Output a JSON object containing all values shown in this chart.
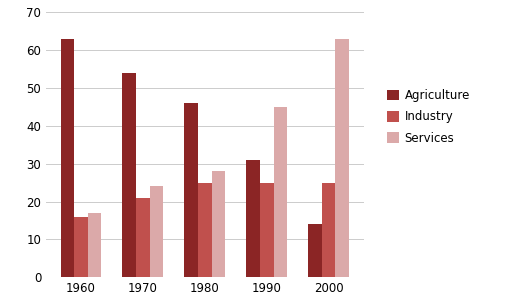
{
  "years": [
    "1960",
    "1970",
    "1980",
    "1990",
    "2000"
  ],
  "agriculture": [
    63,
    54,
    46,
    31,
    14
  ],
  "industry": [
    16,
    21,
    25,
    25,
    25
  ],
  "services": [
    17,
    24,
    28,
    45,
    63
  ],
  "colors": {
    "agriculture": "#8B2525",
    "industry": "#C0504D",
    "services": "#DBA9A9"
  },
  "legend_labels": [
    "Agriculture",
    "Industry",
    "Services"
  ],
  "ylim": [
    0,
    70
  ],
  "yticks": [
    0,
    10,
    20,
    30,
    40,
    50,
    60,
    70
  ],
  "bar_width": 0.22,
  "background_color": "#FFFFFF",
  "figsize": [
    5.12,
    3.08
  ],
  "dpi": 100
}
